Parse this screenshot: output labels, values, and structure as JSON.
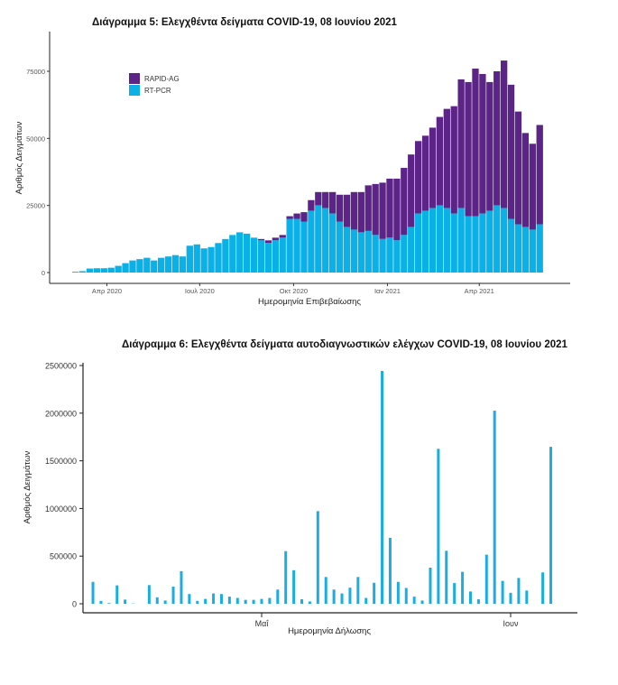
{
  "chart_data": [
    {
      "type": "bar",
      "stacked": true,
      "title": "Διάγραμμα 5: Ελεγχθέντα δείγματα COVID-19, 08 Ιουνίου 2021",
      "xlabel": "Ημερομηνία Επιβεβαίωσης",
      "ylabel": "Αριθμός Δειγμάτων",
      "xlim": [
        "2020-02-27",
        "2021-06-07"
      ],
      "ylim": [
        0,
        85000
      ],
      "yticks": [
        0,
        25000,
        50000,
        75000
      ],
      "ytick_labels": [
        "0",
        "25000",
        "50000",
        "75000"
      ],
      "xticks": [
        "2020-04-01",
        "2020-07-01",
        "2020-10-01",
        "2021-01-01",
        "2021-04-01"
      ],
      "xtick_labels": [
        "Απρ 2020",
        "Ιουλ 2020",
        "Οκτ 2020",
        "Ιαν 2021",
        "Απρ 2021"
      ],
      "legend_position": "top-left",
      "grid": false,
      "series": [
        {
          "name": "RAPID-AG",
          "color": "#5b2486"
        },
        {
          "name": "RT-PCR",
          "color": "#0bb0e6"
        }
      ],
      "week_start": "2020-02-27",
      "bin": "week",
      "rt_pcr": [
        300,
        500,
        1500,
        1600,
        1600,
        1800,
        2500,
        3500,
        4500,
        5000,
        5500,
        4500,
        5500,
        6000,
        6500,
        6000,
        10000,
        10500,
        9000,
        9500,
        11000,
        12500,
        14000,
        15000,
        14500,
        13000,
        12000,
        11000,
        12000,
        13000,
        20000,
        20000,
        19000,
        23000,
        25000,
        24000,
        22000,
        19000,
        17000,
        16000,
        15000,
        15500,
        14000,
        12500,
        13000,
        12000,
        14000,
        17000,
        22000,
        23000,
        24000,
        25000,
        24000,
        22000,
        24000,
        21000,
        21000,
        22000,
        23000,
        25000,
        24000,
        20000,
        18000,
        17000,
        16000,
        18000
      ],
      "rapid_ag": [
        0,
        0,
        0,
        0,
        0,
        0,
        0,
        0,
        0,
        0,
        0,
        0,
        0,
        0,
        0,
        0,
        0,
        0,
        0,
        0,
        0,
        0,
        0,
        0,
        0,
        0,
        500,
        1000,
        1000,
        1000,
        1000,
        2000,
        3500,
        4000,
        5000,
        6000,
        8000,
        10000,
        12000,
        14000,
        15000,
        17000,
        19000,
        21000,
        22000,
        23000,
        25000,
        27000,
        27000,
        28000,
        30000,
        33000,
        37000,
        40000,
        48000,
        50000,
        55000,
        52000,
        48000,
        50000,
        55000,
        50000,
        42000,
        35000,
        32000,
        37000
      ]
    },
    {
      "type": "bar",
      "title": "Διάγραμμα 6: Ελεγχθέντα δείγματα αυτοδιαγνωστικών ελέγχων COVID-19, 08 Ιουνίου 2021",
      "xlabel": "Ημερομηνία Δήλωσης",
      "ylabel": "Αριθμός Δειγμάτων",
      "ylim": [
        0,
        2500000
      ],
      "yticks": [
        0,
        500000,
        1000000,
        1500000,
        2000000,
        2500000
      ],
      "ytick_labels": [
        "0",
        "500000",
        "1000000",
        "1500000",
        "2000000",
        "2500000"
      ],
      "xticks": [
        "2021-05-01",
        "2021-06-01"
      ],
      "xtick_labels": [
        "Μαΐ",
        "Ιουν"
      ],
      "grid": false,
      "color": "#1aaee0",
      "start_date": "2021-04-10",
      "end_date": "2021-06-07",
      "values": [
        230000,
        30000,
        7000,
        193000,
        44000,
        3000,
        0,
        196000,
        68000,
        34000,
        180000,
        342000,
        102000,
        30000,
        51000,
        108000,
        102000,
        75000,
        61000,
        41000,
        41000,
        51000,
        61000,
        149000,
        552000,
        352000,
        47000,
        24000,
        972000,
        281000,
        149000,
        108000,
        169000,
        281000,
        61000,
        220000,
        2443000,
        691000,
        230000,
        166000,
        75000,
        34000,
        379000,
        1626000,
        556000,
        217000,
        335000,
        129000,
        47000,
        515000,
        2026000,
        240000,
        115000,
        271000,
        139000,
        0,
        329000,
        1647000
      ]
    }
  ]
}
